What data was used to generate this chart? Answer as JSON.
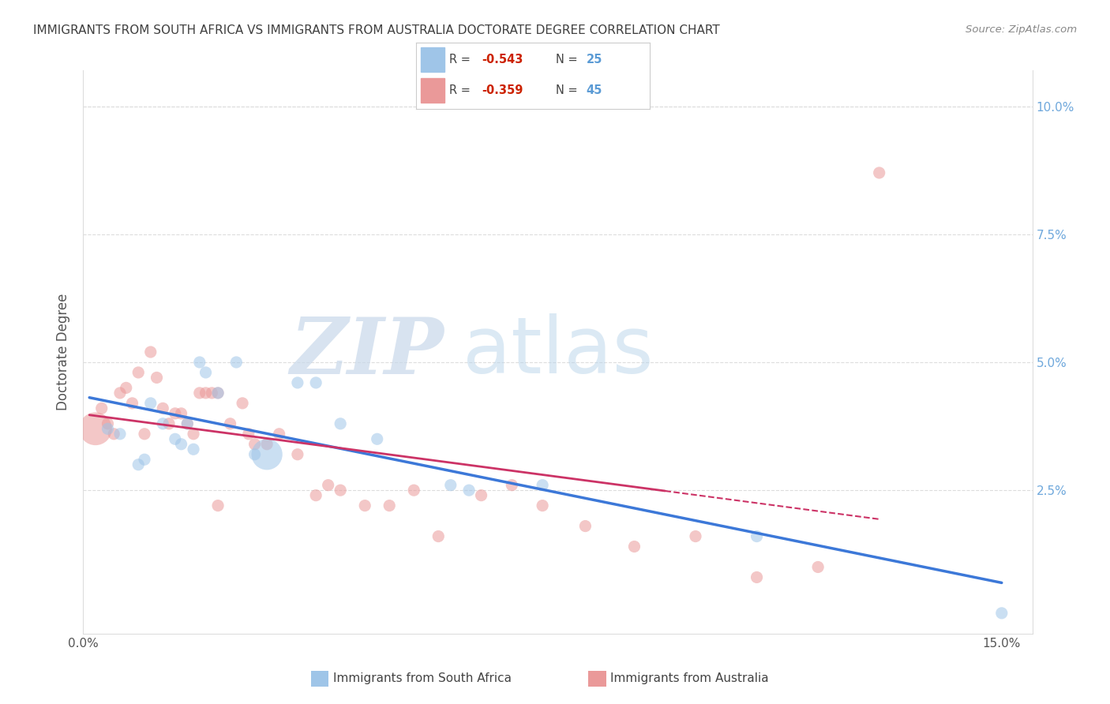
{
  "title": "IMMIGRANTS FROM SOUTH AFRICA VS IMMIGRANTS FROM AUSTRALIA DOCTORATE DEGREE CORRELATION CHART",
  "source": "Source: ZipAtlas.com",
  "ylabel": "Doctorate Degree",
  "xlim": [
    0.0,
    0.155
  ],
  "ylim": [
    -0.003,
    0.107
  ],
  "color_blue": "#9fc5e8",
  "color_pink": "#ea9999",
  "color_blue_line": "#3c78d8",
  "color_pink_line": "#cc3366",
  "color_right_axis": "#6fa8dc",
  "legend_label1": "Immigrants from South Africa",
  "legend_label2": "Immigrants from Australia",
  "watermark_zip": "ZIP",
  "watermark_atlas": "atlas",
  "south_africa_x": [
    0.004,
    0.006,
    0.009,
    0.01,
    0.011,
    0.013,
    0.015,
    0.016,
    0.017,
    0.018,
    0.019,
    0.02,
    0.022,
    0.025,
    0.028,
    0.03,
    0.035,
    0.038,
    0.042,
    0.048,
    0.06,
    0.063,
    0.075,
    0.11,
    0.15
  ],
  "south_africa_y": [
    0.037,
    0.036,
    0.03,
    0.031,
    0.042,
    0.038,
    0.035,
    0.034,
    0.038,
    0.033,
    0.05,
    0.048,
    0.044,
    0.05,
    0.032,
    0.032,
    0.046,
    0.046,
    0.038,
    0.035,
    0.026,
    0.025,
    0.026,
    0.016,
    0.001
  ],
  "south_africa_size": [
    120,
    120,
    120,
    120,
    120,
    120,
    120,
    120,
    120,
    120,
    120,
    120,
    120,
    120,
    120,
    800,
    120,
    120,
    120,
    120,
    120,
    120,
    120,
    120,
    120
  ],
  "australia_x": [
    0.002,
    0.003,
    0.004,
    0.005,
    0.006,
    0.007,
    0.008,
    0.009,
    0.01,
    0.011,
    0.012,
    0.013,
    0.014,
    0.015,
    0.016,
    0.017,
    0.018,
    0.019,
    0.02,
    0.021,
    0.022,
    0.024,
    0.026,
    0.027,
    0.028,
    0.03,
    0.032,
    0.035,
    0.038,
    0.04,
    0.042,
    0.046,
    0.05,
    0.054,
    0.058,
    0.065,
    0.07,
    0.075,
    0.082,
    0.09,
    0.1,
    0.11,
    0.12,
    0.13,
    0.022
  ],
  "australia_y": [
    0.037,
    0.041,
    0.038,
    0.036,
    0.044,
    0.045,
    0.042,
    0.048,
    0.036,
    0.052,
    0.047,
    0.041,
    0.038,
    0.04,
    0.04,
    0.038,
    0.036,
    0.044,
    0.044,
    0.044,
    0.044,
    0.038,
    0.042,
    0.036,
    0.034,
    0.034,
    0.036,
    0.032,
    0.024,
    0.026,
    0.025,
    0.022,
    0.022,
    0.025,
    0.016,
    0.024,
    0.026,
    0.022,
    0.018,
    0.014,
    0.016,
    0.008,
    0.01,
    0.087,
    0.022
  ],
  "australia_size": [
    900,
    120,
    120,
    120,
    120,
    120,
    120,
    120,
    120,
    120,
    120,
    120,
    120,
    120,
    120,
    120,
    120,
    120,
    120,
    120,
    120,
    120,
    120,
    120,
    120,
    120,
    120,
    120,
    120,
    120,
    120,
    120,
    120,
    120,
    120,
    120,
    120,
    120,
    120,
    120,
    120,
    120,
    120,
    120,
    120
  ]
}
